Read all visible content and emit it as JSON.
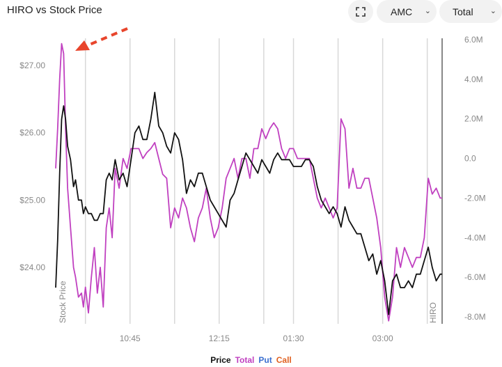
{
  "title": "HIRO vs Stock Price",
  "controls": {
    "ticker": "AMC",
    "mode": "Total",
    "expand_icon": "expand-icon",
    "chevron_icon": "chevron-down-icon"
  },
  "legend": [
    {
      "label": "Price",
      "color": "#111111"
    },
    {
      "label": "Total",
      "color": "#c040c0"
    },
    {
      "label": "Put",
      "color": "#3a6fd0"
    },
    {
      "label": "Call",
      "color": "#e06020"
    }
  ],
  "colors": {
    "price": "#111111",
    "total": "#c040c0",
    "annotation_arrow": "#e8452c",
    "grid": "#d8d8d8"
  },
  "chart_data": {
    "type": "line",
    "title": "HIRO vs Stock Price",
    "left_axis_label": "Stock Price",
    "right_axis_label": "HIRO",
    "y_left_ticks": [
      "$27.00",
      "$26.00",
      "$25.00",
      "$24.00"
    ],
    "y_left_values": [
      27,
      26,
      25,
      24
    ],
    "y_left_range": [
      23.2,
      27.4
    ],
    "y_right_ticks": [
      "6.0M",
      "4.0M",
      "2.0M",
      "0.0",
      "-2.0M",
      "-4.0M",
      "-6.0M",
      "-8.0M"
    ],
    "y_right_values": [
      6,
      4,
      2,
      0,
      -2,
      -4,
      -6,
      -8
    ],
    "y_right_range": [
      -8,
      6
    ],
    "x_ticks": [
      "10:45",
      "12:15",
      "01:30",
      "03:00"
    ],
    "x_range_minutes": [
      570,
      960
    ],
    "x_tick_minutes": [
      645,
      735,
      810,
      900
    ],
    "x_gridlines_minutes": [
      600,
      645,
      690,
      735,
      780,
      810,
      855,
      900,
      945
    ],
    "grid": true,
    "series": [
      {
        "name": "Price",
        "axis": "left",
        "x": [
          570,
          572,
          574,
          576,
          578,
          580,
          582,
          585,
          588,
          590,
          593,
          596,
          598,
          600,
          603,
          606,
          609,
          612,
          615,
          618,
          621,
          624,
          627,
          630,
          634,
          638,
          642,
          646,
          650,
          654,
          658,
          662,
          666,
          670,
          674,
          678,
          682,
          686,
          690,
          694,
          698,
          702,
          706,
          710,
          714,
          718,
          722,
          726,
          730,
          734,
          738,
          742,
          746,
          750,
          754,
          758,
          762,
          766,
          770,
          774,
          778,
          782,
          786,
          790,
          794,
          798,
          802,
          806,
          810,
          814,
          818,
          822,
          826,
          830,
          834,
          838,
          842,
          846,
          850,
          854,
          858,
          862,
          866,
          870,
          874,
          878,
          882,
          886,
          890,
          894,
          898,
          902,
          906,
          910,
          914,
          918,
          922,
          926,
          930,
          934,
          938,
          942,
          946,
          950,
          954,
          958,
          960
        ],
        "y": [
          23.7,
          24.4,
          25.4,
          26.2,
          26.4,
          26.2,
          25.8,
          25.6,
          25.2,
          25.3,
          25.0,
          25.0,
          24.8,
          24.9,
          24.8,
          24.8,
          24.7,
          24.7,
          24.8,
          24.8,
          25.3,
          25.4,
          25.3,
          25.6,
          25.3,
          25.4,
          25.2,
          25.6,
          26.0,
          26.1,
          25.9,
          25.9,
          26.2,
          26.6,
          26.1,
          26.0,
          25.8,
          25.7,
          26.0,
          25.9,
          25.6,
          25.1,
          25.3,
          25.2,
          25.4,
          25.4,
          25.2,
          25.0,
          24.9,
          24.8,
          24.7,
          24.6,
          25.0,
          25.1,
          25.3,
          25.5,
          25.7,
          25.6,
          25.5,
          25.4,
          25.6,
          25.5,
          25.4,
          25.6,
          25.7,
          25.6,
          25.6,
          25.6,
          25.5,
          25.5,
          25.5,
          25.6,
          25.6,
          25.5,
          25.2,
          25.0,
          24.9,
          24.8,
          24.9,
          24.8,
          24.6,
          24.9,
          24.7,
          24.6,
          24.5,
          24.5,
          24.3,
          24.1,
          24.2,
          23.9,
          24.1,
          23.8,
          23.3,
          23.8,
          23.9,
          23.7,
          23.7,
          23.8,
          23.7,
          23.9,
          23.9,
          24.1,
          24.3,
          24.0,
          23.8,
          23.9,
          23.9
        ]
      },
      {
        "name": "Total",
        "axis": "right",
        "x": [
          570,
          572,
          574,
          576,
          578,
          580,
          582,
          585,
          588,
          590,
          593,
          596,
          598,
          600,
          603,
          606,
          609,
          612,
          615,
          618,
          621,
          624,
          627,
          630,
          634,
          638,
          642,
          646,
          650,
          654,
          658,
          662,
          666,
          670,
          674,
          678,
          682,
          686,
          690,
          694,
          698,
          702,
          706,
          710,
          714,
          718,
          722,
          726,
          730,
          734,
          738,
          742,
          746,
          750,
          754,
          758,
          762,
          766,
          770,
          774,
          778,
          782,
          786,
          790,
          794,
          798,
          802,
          806,
          810,
          814,
          818,
          822,
          826,
          830,
          834,
          838,
          842,
          846,
          850,
          854,
          858,
          862,
          866,
          870,
          874,
          878,
          882,
          886,
          890,
          894,
          898,
          902,
          906,
          910,
          914,
          918,
          922,
          926,
          930,
          934,
          938,
          942,
          946,
          950,
          954,
          958,
          960
        ],
        "y": [
          -0.5,
          1.5,
          4.0,
          5.8,
          5.3,
          1.5,
          -1.5,
          -3.5,
          -5.5,
          -6.0,
          -7.0,
          -6.8,
          -7.5,
          -6.5,
          -7.8,
          -6.0,
          -4.5,
          -6.8,
          -5.5,
          -7.5,
          -3.5,
          -2.5,
          -4.0,
          -0.5,
          -1.5,
          0.0,
          -0.5,
          0.5,
          0.5,
          0.5,
          0.0,
          0.3,
          0.5,
          0.8,
          0.0,
          -0.8,
          -1.0,
          -3.5,
          -2.5,
          -3.0,
          -2.0,
          -2.5,
          -3.5,
          -4.2,
          -3.0,
          -2.5,
          -1.5,
          -3.0,
          -4.0,
          -3.5,
          -2.5,
          -1.0,
          -0.5,
          0.0,
          -1.0,
          0.0,
          0.0,
          -1.0,
          0.5,
          0.5,
          1.5,
          1.0,
          1.5,
          1.8,
          1.5,
          0.5,
          0.0,
          0.5,
          0.5,
          0.0,
          0.0,
          0.0,
          0.0,
          -1.0,
          -2.0,
          -2.5,
          -2.0,
          -2.5,
          -3.0,
          -2.5,
          2.0,
          1.5,
          -1.5,
          -0.5,
          -1.5,
          -1.5,
          -1.0,
          -1.0,
          -2.0,
          -3.0,
          -4.5,
          -7.0,
          -8.2,
          -7.0,
          -4.5,
          -5.5,
          -4.5,
          -5.0,
          -5.5,
          -5.0,
          -5.0,
          -4.0,
          -1.0,
          -1.8,
          -1.5,
          -2.0,
          -2.0
        ]
      }
    ],
    "annotation": "arrow pointing to the Total series peak"
  }
}
